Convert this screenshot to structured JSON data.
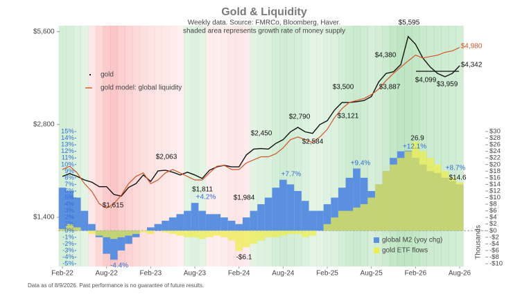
{
  "title": "Gold & Liquidity",
  "subtitle": [
    "Weekly data.  Source: FMRCo, Bloomberg, Haver.",
    "shaded area represents growth rate of money supply"
  ],
  "footnote": "Data as of 8/9/2026. Past performance is no guarantee of future results.",
  "chart_data": [
    {
      "type": "line",
      "log_scale": true,
      "x": [
        "2022-02",
        "2022-03",
        "2022-04",
        "2022-05",
        "2022-06",
        "2022-07",
        "2022-08",
        "2022-09",
        "2022-10",
        "2022-11",
        "2022-12",
        "2023-01",
        "2023-02",
        "2023-03",
        "2023-04",
        "2023-05",
        "2023-06",
        "2023-07",
        "2023-08",
        "2023-09",
        "2023-10",
        "2023-11",
        "2023-12",
        "2024-01",
        "2024-02",
        "2024-03",
        "2024-04",
        "2024-05",
        "2024-06",
        "2024-07",
        "2024-08",
        "2024-09",
        "2024-10",
        "2024-11",
        "2024-12",
        "2025-01",
        "2025-02",
        "2025-03",
        "2025-04",
        "2025-05",
        "2025-06",
        "2025-07",
        "2025-08",
        "2025-09",
        "2025-10",
        "2025-11",
        "2025-12",
        "2026-01",
        "2026-02",
        "2026-03",
        "2026-04",
        "2026-05",
        "2026-06",
        "2026-07",
        "2026-08"
      ],
      "xticks": [
        {
          "value": "2022-02",
          "label": "Feb-22"
        },
        {
          "value": "2022-08",
          "label": "Aug-22"
        },
        {
          "value": "2023-02",
          "label": "Feb-23"
        },
        {
          "value": "2023-08",
          "label": "Aug-23"
        },
        {
          "value": "2024-02",
          "label": "Feb-24"
        },
        {
          "value": "2024-08",
          "label": "Aug-24"
        },
        {
          "value": "2025-02",
          "label": "Feb-25"
        },
        {
          "value": "2025-08",
          "label": "Aug-25"
        },
        {
          "value": "2026-02",
          "label": "Feb-26"
        },
        {
          "value": "2026-08",
          "label": "Aug-26"
        }
      ],
      "ylim": [
        1000,
        5800
      ],
      "yticks": [
        {
          "value": 1400,
          "label": "$1,400"
        },
        {
          "value": 2800,
          "label": "$2,800"
        },
        {
          "value": 5600,
          "label": "$5,600"
        }
      ],
      "series": [
        {
          "name": "gold",
          "color": "#111111",
          "values": [
            1900,
            1940,
            1900,
            1850,
            1820,
            1760,
            1760,
            1660,
            1640,
            1750,
            1800,
            1920,
            1830,
            1980,
            1990,
            1960,
            1920,
            1960,
            1920,
            1870,
            1990,
            2040,
            2063,
            2040,
            2040,
            2230,
            2330,
            2340,
            2330,
            2430,
            2500,
            2650,
            2740,
            2650,
            2620,
            2800,
            2880,
            3120,
            3300,
            3300,
            3320,
            3350,
            3450,
            3850,
            4100,
            4150,
            4380,
            5400,
            5100,
            4600,
            4300,
            4100,
            4000,
            4100,
            4342
          ]
        },
        {
          "name": "gold model: global liquidity",
          "color": "#d2542a",
          "values": [
            2000,
            2050,
            1950,
            1800,
            1700,
            1550,
            1500,
            1550,
            1650,
            1800,
            1900,
            1950,
            1800,
            1850,
            1950,
            2000,
            1950,
            1900,
            1850,
            1850,
            1950,
            2050,
            2063,
            2000,
            2000,
            2100,
            2150,
            2200,
            2200,
            2250,
            2350,
            2500,
            2550,
            2500,
            2450,
            2550,
            2700,
            2950,
            3150,
            3300,
            3350,
            3400,
            3500,
            3650,
            3887,
            4100,
            4300,
            4500,
            4700,
            4600,
            4650,
            4700,
            4800,
            4850,
            4980
          ]
        }
      ],
      "annotations": [
        {
          "text": "$5,595",
          "color": "#111111"
        },
        {
          "text": "$4,980",
          "color": "#d2542a"
        },
        {
          "text": "$4,380",
          "color": "#111111"
        },
        {
          "text": "$4,342",
          "color": "#111111"
        },
        {
          "text": "$3,500",
          "color": "#111111"
        },
        {
          "text": "$3,887",
          "color": "#111111"
        },
        {
          "text": "$4,099",
          "color": "#111111"
        },
        {
          "text": "$3,959",
          "color": "#111111"
        },
        {
          "text": "$3,121",
          "color": "#111111"
        },
        {
          "text": "$2,790",
          "color": "#111111"
        },
        {
          "text": "$2,584",
          "color": "#111111"
        },
        {
          "text": "$2,450",
          "color": "#111111"
        },
        {
          "text": "$2,063",
          "color": "#111111"
        },
        {
          "text": "$1,811",
          "color": "#111111"
        },
        {
          "text": "$1,984",
          "color": "#111111"
        },
        {
          "text": "$1,615",
          "color": "#111111"
        },
        {
          "text": "+4.2%",
          "color": "#2f6fd8"
        },
        {
          "text": "+7.7%",
          "color": "#2f6fd8"
        },
        {
          "text": "+9.4%",
          "color": "#2f6fd8"
        },
        {
          "text": "+12.1%",
          "color": "#2f6fd8"
        },
        {
          "text": "+8.7%",
          "color": "#2f6fd8"
        },
        {
          "text": "26.9",
          "color": "#111111"
        },
        {
          "text": "$14.6",
          "color": "#111111"
        },
        {
          "text": "-4.4%",
          "color": "#2f6fd8"
        },
        {
          "text": "-$6.1",
          "color": "#111111"
        }
      ]
    },
    {
      "type": "bar",
      "x": [
        "2022-02",
        "2022-03",
        "2022-04",
        "2022-05",
        "2022-06",
        "2022-07",
        "2022-08",
        "2022-09",
        "2022-10",
        "2022-11",
        "2022-12",
        "2023-01",
        "2023-02",
        "2023-03",
        "2023-04",
        "2023-05",
        "2023-06",
        "2023-07",
        "2023-08",
        "2023-09",
        "2023-10",
        "2023-11",
        "2023-12",
        "2024-01",
        "2024-02",
        "2024-03",
        "2024-04",
        "2024-05",
        "2024-06",
        "2024-07",
        "2024-08",
        "2024-09",
        "2024-10",
        "2024-11",
        "2024-12",
        "2025-01",
        "2025-02",
        "2025-03",
        "2025-04",
        "2025-05",
        "2025-06",
        "2025-07",
        "2025-08",
        "2025-09",
        "2025-10",
        "2025-11",
        "2025-12",
        "2026-01",
        "2026-02",
        "2026-03",
        "2026-04",
        "2026-05",
        "2026-06",
        "2026-07",
        "2026-08"
      ],
      "ylim": [
        -5,
        15
      ],
      "yticks": [
        {
          "value": 15,
          "label": "15%"
        },
        {
          "value": 14,
          "label": "14%"
        },
        {
          "value": 13,
          "label": "13%"
        },
        {
          "value": 12,
          "label": "12%"
        },
        {
          "value": 11,
          "label": "11%"
        },
        {
          "value": 10,
          "label": "10%"
        },
        {
          "value": 9,
          "label": "9%"
        },
        {
          "value": 8,
          "label": "8%"
        },
        {
          "value": 7,
          "label": "7%"
        },
        {
          "value": 6,
          "label": "6%"
        },
        {
          "value": 5,
          "label": "5%"
        },
        {
          "value": 4,
          "label": "4%"
        },
        {
          "value": 3,
          "label": "3%"
        },
        {
          "value": 2,
          "label": "2%"
        },
        {
          "value": 1,
          "label": "1%"
        },
        {
          "value": 0,
          "label": "0%"
        },
        {
          "value": -1,
          "label": "-1%"
        },
        {
          "value": -2,
          "label": "-2%"
        },
        {
          "value": -3,
          "label": "-3%"
        },
        {
          "value": -4,
          "label": "-4%"
        },
        {
          "value": -5,
          "label": "-5%"
        }
      ],
      "y2lim": [
        -10,
        30
      ],
      "y2ticks": [
        {
          "value": 30,
          "label": "$30"
        },
        {
          "value": 28,
          "label": "$28"
        },
        {
          "value": 26,
          "label": "$26"
        },
        {
          "value": 24,
          "label": "$24"
        },
        {
          "value": 22,
          "label": "$22"
        },
        {
          "value": 20,
          "label": "$20"
        },
        {
          "value": 18,
          "label": "$18"
        },
        {
          "value": 16,
          "label": "$16"
        },
        {
          "value": 14,
          "label": "$14"
        },
        {
          "value": 12,
          "label": "$12"
        },
        {
          "value": 10,
          "label": "$10"
        },
        {
          "value": 8,
          "label": "$8"
        },
        {
          "value": 6,
          "label": "$6"
        },
        {
          "value": 4,
          "label": "$4"
        },
        {
          "value": 2,
          "label": "$2"
        },
        {
          "value": 0,
          "label": "$0"
        },
        {
          "value": -2,
          "label": "-$2"
        },
        {
          "value": -4,
          "label": "-$4"
        },
        {
          "value": -6,
          "label": "-$6"
        },
        {
          "value": -8,
          "label": "-$8"
        },
        {
          "value": -10,
          "label": "-$10"
        }
      ],
      "y2_label": "Thousands",
      "series": [
        {
          "name": "global M2 (yoy chg)",
          "color": "#5b8fe0",
          "values": [
            6.5,
            6,
            5,
            3,
            1,
            -1,
            -3.5,
            -4.4,
            -3,
            -2,
            -1,
            0,
            0.5,
            1,
            1.5,
            2,
            2.5,
            3,
            4.2,
            3,
            2.5,
            2.5,
            2,
            1.5,
            1,
            2,
            3,
            4,
            5,
            6.5,
            7.7,
            7,
            6,
            4.5,
            3,
            3,
            4,
            5,
            6.5,
            8,
            9.4,
            8,
            6,
            7,
            9,
            11,
            12,
            12.1,
            11,
            10,
            9,
            8.7,
            8,
            7.5,
            7
          ]
        },
        {
          "name": "gold ETF flows",
          "color": "#eded4a",
          "axis": "y2",
          "values": [
            0.5,
            2,
            1,
            0,
            -1,
            -1.5,
            -2,
            -2.5,
            -2,
            -1.5,
            -1,
            -0.5,
            -1,
            0,
            -0.5,
            -1,
            -1.5,
            -2,
            -2,
            -2.5,
            -2,
            -1.5,
            -2,
            -3,
            -6.1,
            -5,
            -4,
            -3,
            -2,
            -2,
            -1.5,
            -1,
            -1,
            -2,
            -1.5,
            0,
            2,
            4,
            6,
            6,
            7,
            8,
            10,
            14,
            18,
            20,
            22,
            24,
            26.9,
            24,
            22,
            20,
            18,
            16,
            14.6
          ]
        }
      ]
    }
  ]
}
